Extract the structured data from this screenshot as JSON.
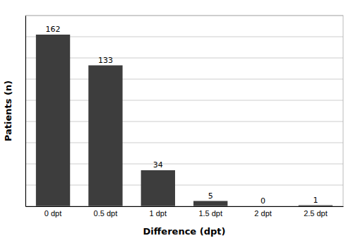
{
  "chart_data": {
    "type": "bar",
    "categories": [
      "0 dpt",
      "0.5 dpt",
      "1 dpt",
      "1.5 dpt",
      "2 dpt",
      "2.5 dpt"
    ],
    "values": [
      162,
      133,
      34,
      5,
      0,
      1
    ],
    "color": "#3d3d3d",
    "xlabel": "Difference (dpt)",
    "ylabel": "Patients (n)",
    "ylim": [
      0,
      180
    ],
    "yticks": [
      0,
      20,
      40,
      60,
      80,
      100,
      120,
      140,
      160,
      180
    ],
    "grid": true,
    "data_labels": true,
    "tick_labels": "x"
  }
}
